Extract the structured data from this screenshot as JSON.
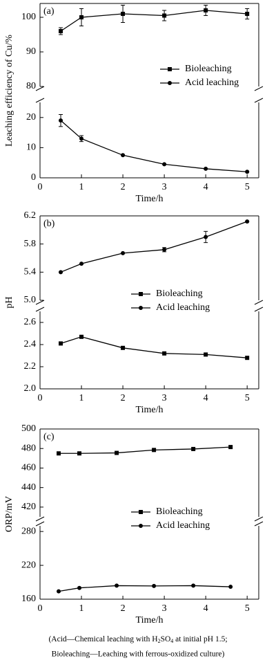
{
  "chart_data": [
    {
      "type": "line",
      "panel_label": "(a)",
      "x_label": "Time/h",
      "y_label": "Leaching efficiency of Cu/%",
      "x": [
        0.5,
        1,
        2,
        3,
        4,
        5
      ],
      "xlim": [
        0,
        5.28
      ],
      "xticks": [
        0,
        1,
        2,
        3,
        4,
        5
      ],
      "y_upper": {
        "ylim": [
          80,
          104
        ],
        "yticks": [
          80,
          90,
          100
        ]
      },
      "y_lower": {
        "ylim": [
          0,
          25
        ],
        "yticks": [
          0,
          10,
          20
        ]
      },
      "series": [
        {
          "name": "Bioleaching",
          "color": "#000000",
          "marker": "square",
          "segment": "upper",
          "values": [
            96,
            100,
            101,
            100.5,
            102,
            101
          ],
          "errors": [
            1,
            2.5,
            2.5,
            1.5,
            1.5,
            1.5
          ]
        },
        {
          "name": "Acid leaching",
          "color": "#000000",
          "marker": "circle",
          "segment": "lower",
          "values": [
            19,
            13,
            7.5,
            4.5,
            3,
            2
          ],
          "errors": [
            2,
            1,
            0,
            0,
            0,
            0
          ]
        }
      ]
    },
    {
      "type": "line",
      "panel_label": "(b)",
      "x_label": "Time/h",
      "y_label": "pH",
      "x": [
        0.5,
        1,
        2,
        3,
        4,
        5
      ],
      "xlim": [
        0,
        5.28
      ],
      "xticks": [
        0,
        1,
        2,
        3,
        4,
        5
      ],
      "y_upper": {
        "ylim": [
          5.0,
          6.2
        ],
        "yticks": [
          {
            "value": 5,
            "label": "5.0"
          },
          5.4,
          5.8,
          6.2
        ]
      },
      "y_lower": {
        "ylim": [
          2.0,
          2.7
        ],
        "yticks": [
          {
            "value": 2,
            "label": "2.0"
          },
          2.2,
          2.4,
          2.6
        ]
      },
      "series": [
        {
          "name": "Bioleaching",
          "color": "#000000",
          "marker": "square",
          "segment": "lower",
          "values": [
            2.41,
            2.47,
            2.37,
            2.32,
            2.31,
            2.28
          ]
        },
        {
          "name": "Acid leaching",
          "color": "#000000",
          "marker": "circle",
          "segment": "upper",
          "values": [
            5.4,
            5.52,
            5.67,
            5.72,
            5.9,
            6.12
          ],
          "errors": [
            0,
            0,
            0,
            0.03,
            0.08,
            0
          ]
        }
      ]
    },
    {
      "type": "line",
      "panel_label": "(c)",
      "x_label": "Time/h",
      "y_label": "ORP/mV",
      "x": [
        0.45,
        0.95,
        1.85,
        2.75,
        3.7,
        4.6
      ],
      "xlim": [
        0,
        5.28
      ],
      "xticks": [
        0,
        1,
        2,
        3,
        4,
        5
      ],
      "y_upper": {
        "ylim": [
          410,
          500
        ],
        "yticks": [
          420,
          440,
          460,
          480,
          500
        ]
      },
      "y_lower": {
        "ylim": [
          160,
          290
        ],
        "yticks": [
          160,
          220,
          280
        ]
      },
      "series": [
        {
          "name": "Bioleaching",
          "color": "#000000",
          "marker": "square",
          "segment": "upper",
          "values": [
            475,
            475,
            475.5,
            478.5,
            479.5,
            481.5
          ]
        },
        {
          "name": "Acid leaching",
          "color": "#000000",
          "marker": "circle",
          "segment": "lower",
          "values": [
            174,
            180,
            184,
            183.5,
            184,
            182
          ]
        }
      ]
    }
  ],
  "caption": {
    "line1": [
      "(Acid—Chemical leaching with H",
      "2",
      "SO",
      "4",
      " at initial pH 1.5;"
    ],
    "line2": "Bioleaching—Leaching with ferrous-oxidized culture)"
  }
}
